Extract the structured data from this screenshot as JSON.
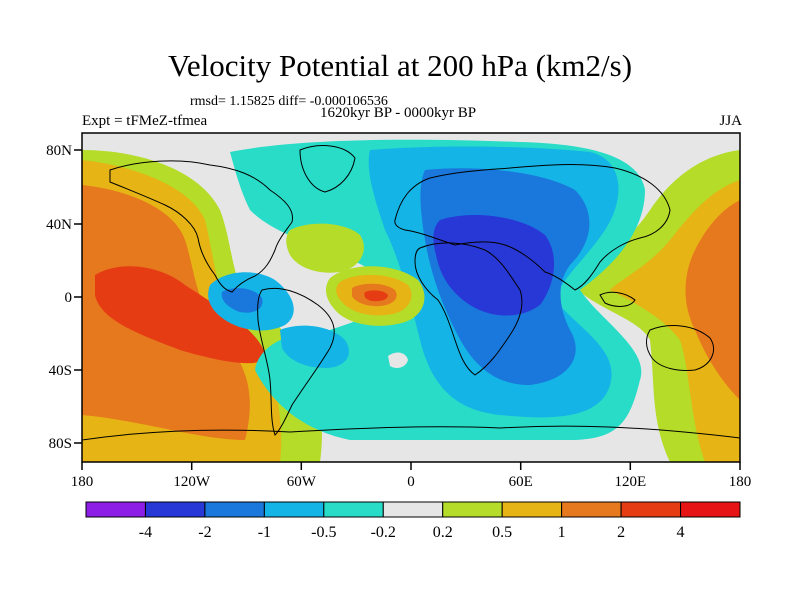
{
  "header": {
    "title": "Velocity Potential at 200 hPa (km2/s)",
    "stats": "rmsd= 1.15825  diff= -0.000106536",
    "period": "1620kyr BP - 0000kyr BP",
    "experiment": "Expt = tFMeZ-tfmea",
    "season": "JJA"
  },
  "map": {
    "projection": "cylindrical-equidistant",
    "lon_range": [
      -180,
      180
    ],
    "lat_range": [
      -90,
      90
    ],
    "x_ticks": [
      "180",
      "120W",
      "60W",
      "0",
      "60E",
      "120E",
      "180"
    ],
    "y_ticks": [
      "80N",
      "40N",
      "0",
      "40S",
      "80S"
    ]
  },
  "colorbar": {
    "labels": [
      "-4",
      "-2",
      "-1",
      "-0.5",
      "-0.2",
      "0.2",
      "0.5",
      "1",
      "2",
      "4"
    ],
    "colors": [
      "#8c1ee6",
      "#2838d6",
      "#1a78dc",
      "#14b4e6",
      "#28dcc8",
      "#e6e6e6",
      "#b4dc28",
      "#e6b414",
      "#e6781e",
      "#e63c14",
      "#e61414"
    ]
  }
}
